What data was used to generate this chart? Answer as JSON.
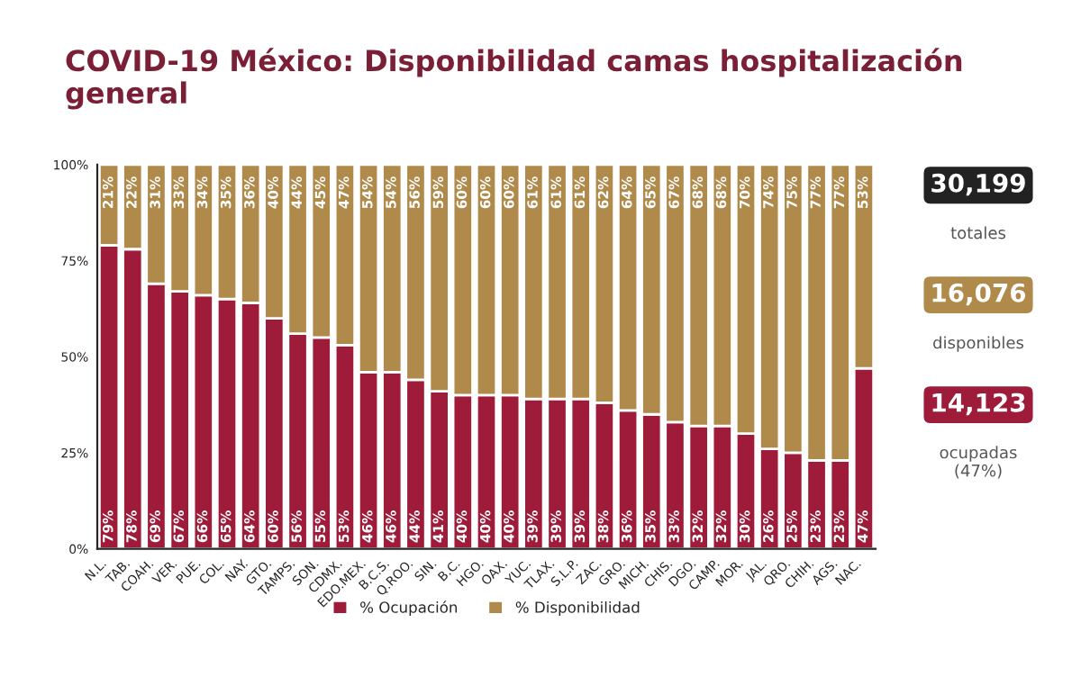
{
  "chart_data": {
    "type": "bar",
    "stacked": true,
    "title": "COVID-19 México: Disponibilidad camas hospitalización general",
    "categories": [
      "N.L.",
      "TAB.",
      "COAH.",
      "VER.",
      "PUE.",
      "COL.",
      "NAY.",
      "GTO.",
      "TAMPS.",
      "SON.",
      "CDMX.",
      "EDO.MEX.",
      "B.C.S.",
      "Q.ROO.",
      "SIN.",
      "B.C.",
      "HGO.",
      "OAX.",
      "YUC.",
      "TLAX.",
      "S.L.P.",
      "ZAC.",
      "GRO.",
      "MICH.",
      "CHIS.",
      "DGO.",
      "CAMP.",
      "MOR.",
      "JAL.",
      "QRO.",
      "CHIH.",
      "AGS.",
      "NAC."
    ],
    "series": [
      {
        "name": "% Ocupación",
        "color": "#9e1b3a",
        "values": [
          79,
          78,
          69,
          67,
          66,
          65,
          64,
          60,
          56,
          55,
          53,
          46,
          46,
          44,
          41,
          40,
          40,
          40,
          39,
          39,
          39,
          38,
          36,
          35,
          33,
          32,
          32,
          30,
          26,
          25,
          23,
          23,
          47
        ],
        "value_labels": [
          "79%",
          "78%",
          "69%",
          "67%",
          "66%",
          "65%",
          "64%",
          "60%",
          "56%",
          "55%",
          "53%",
          "46%",
          "46%",
          "44%",
          "41%",
          "40%",
          "40%",
          "40%",
          "39%",
          "39%",
          "39%",
          "38%",
          "36%",
          "35%",
          "33%",
          "32%",
          "32%",
          "30%",
          "26%",
          "25%",
          "23%",
          "23%",
          "47%"
        ]
      },
      {
        "name": "% Disponibilidad",
        "color": "#b08a4a",
        "values": [
          21,
          22,
          31,
          33,
          34,
          35,
          36,
          40,
          44,
          45,
          47,
          54,
          54,
          56,
          59,
          60,
          60,
          60,
          61,
          61,
          61,
          62,
          64,
          65,
          67,
          68,
          68,
          70,
          74,
          75,
          77,
          77,
          53
        ],
        "value_labels": [
          "21%",
          "22%",
          "31%",
          "33%",
          "34%",
          "35%",
          "36%",
          "40%",
          "44%",
          "45%",
          "47%",
          "54%",
          "54%",
          "56%",
          "59%",
          "60%",
          "60%",
          "60%",
          "61%",
          "61%",
          "61%",
          "62%",
          "64%",
          "65%",
          "67%",
          "68%",
          "68%",
          "70%",
          "74%",
          "75%",
          "77%",
          "77%",
          "53%"
        ]
      }
    ],
    "ylim": [
      0,
      100
    ],
    "yticks": [
      {
        "value": 0,
        "label": "0%"
      },
      {
        "value": 25,
        "label": "25%"
      },
      {
        "value": 50,
        "label": "50%"
      },
      {
        "value": 75,
        "label": "75%"
      },
      {
        "value": 100,
        "label": "100%"
      }
    ],
    "legend": "bottom",
    "grid": false,
    "annotations": [
      "30,199",
      "totales",
      "16,076",
      "disponibles",
      "14,123",
      "ocupadas\n(47%)"
    ]
  }
}
